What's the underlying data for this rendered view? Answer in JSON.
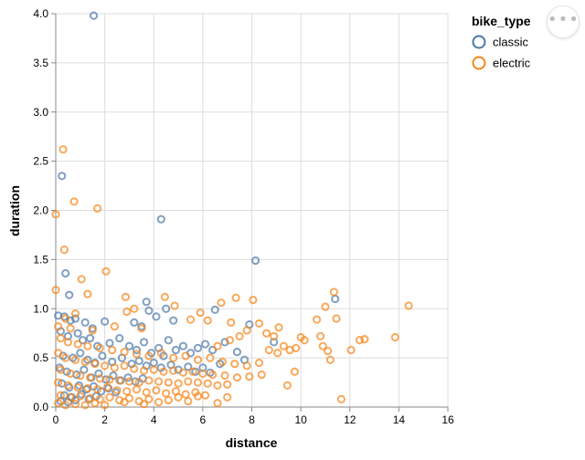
{
  "chart_data": {
    "type": "scatter",
    "title": "",
    "xlabel": "distance",
    "ylabel": "duration",
    "xlim": [
      0,
      16
    ],
    "ylim": [
      0,
      4
    ],
    "x_ticks": [
      "0",
      "2",
      "4",
      "6",
      "8",
      "10",
      "12",
      "14",
      "16"
    ],
    "y_ticks": [
      "0.0",
      "0.5",
      "1.0",
      "1.5",
      "2.0",
      "2.5",
      "3.0",
      "3.5",
      "4.0"
    ],
    "grid": true,
    "legend": {
      "title": "bike_type",
      "placement": "top-right",
      "entries": [
        "classic",
        "electric"
      ]
    },
    "series": [
      {
        "name": "classic",
        "color": "#4c78a8",
        "points": [
          [
            1.55,
            3.98
          ],
          [
            0.25,
            2.35
          ],
          [
            4.3,
            1.91
          ],
          [
            8.15,
            1.49
          ],
          [
            0.4,
            1.36
          ],
          [
            0.55,
            1.14
          ],
          [
            11.4,
            1.1
          ],
          [
            3.7,
            1.07
          ],
          [
            0.1,
            0.93
          ],
          [
            0.35,
            0.92
          ],
          [
            0.6,
            0.88
          ],
          [
            0.8,
            0.9
          ],
          [
            1.2,
            0.86
          ],
          [
            1.5,
            0.8
          ],
          [
            2.0,
            0.87
          ],
          [
            3.2,
            0.86
          ],
          [
            3.5,
            0.82
          ],
          [
            3.8,
            0.98
          ],
          [
            4.1,
            0.92
          ],
          [
            4.5,
            1.0
          ],
          [
            4.8,
            0.88
          ],
          [
            6.5,
            0.99
          ],
          [
            7.9,
            0.84
          ],
          [
            8.9,
            0.66
          ],
          [
            0.2,
            0.77
          ],
          [
            0.5,
            0.72
          ],
          [
            0.9,
            0.75
          ],
          [
            1.1,
            0.68
          ],
          [
            1.4,
            0.7
          ],
          [
            1.7,
            0.62
          ],
          [
            2.2,
            0.65
          ],
          [
            2.6,
            0.7
          ],
          [
            3.0,
            0.62
          ],
          [
            3.3,
            0.58
          ],
          [
            3.6,
            0.66
          ],
          [
            3.9,
            0.55
          ],
          [
            4.2,
            0.6
          ],
          [
            4.4,
            0.52
          ],
          [
            4.6,
            0.68
          ],
          [
            4.9,
            0.58
          ],
          [
            5.2,
            0.62
          ],
          [
            5.5,
            0.55
          ],
          [
            5.8,
            0.6
          ],
          [
            6.1,
            0.64
          ],
          [
            6.4,
            0.58
          ],
          [
            6.9,
            0.66
          ],
          [
            7.4,
            0.56
          ],
          [
            7.7,
            0.48
          ],
          [
            0.3,
            0.52
          ],
          [
            0.7,
            0.5
          ],
          [
            1.0,
            0.55
          ],
          [
            1.3,
            0.48
          ],
          [
            1.6,
            0.45
          ],
          [
            1.9,
            0.52
          ],
          [
            2.3,
            0.46
          ],
          [
            2.7,
            0.5
          ],
          [
            3.1,
            0.44
          ],
          [
            3.4,
            0.47
          ],
          [
            3.7,
            0.42
          ],
          [
            4.0,
            0.45
          ],
          [
            4.3,
            0.4
          ],
          [
            4.7,
            0.43
          ],
          [
            5.0,
            0.38
          ],
          [
            5.4,
            0.41
          ],
          [
            5.7,
            0.36
          ],
          [
            6.0,
            0.4
          ],
          [
            6.3,
            0.35
          ],
          [
            6.7,
            0.44
          ],
          [
            0.15,
            0.4
          ],
          [
            0.45,
            0.36
          ],
          [
            0.85,
            0.33
          ],
          [
            1.15,
            0.38
          ],
          [
            1.45,
            0.3
          ],
          [
            1.75,
            0.34
          ],
          [
            2.05,
            0.28
          ],
          [
            2.35,
            0.32
          ],
          [
            2.65,
            0.27
          ],
          [
            2.95,
            0.3
          ],
          [
            3.25,
            0.26
          ],
          [
            3.55,
            0.29
          ],
          [
            0.25,
            0.24
          ],
          [
            0.55,
            0.2
          ],
          [
            0.95,
            0.22
          ],
          [
            1.25,
            0.18
          ],
          [
            1.55,
            0.21
          ],
          [
            1.85,
            0.16
          ],
          [
            2.15,
            0.19
          ],
          [
            2.45,
            0.15
          ],
          [
            0.35,
            0.12
          ],
          [
            0.65,
            0.1
          ],
          [
            1.05,
            0.13
          ],
          [
            1.35,
            0.08
          ],
          [
            0.2,
            0.06
          ],
          [
            0.5,
            0.05
          ],
          [
            0.8,
            0.07
          ],
          [
            1.65,
            0.11
          ]
        ]
      },
      {
        "name": "electric",
        "color": "#f58518",
        "points": [
          [
            0.3,
            2.62
          ],
          [
            0.0,
            1.96
          ],
          [
            0.75,
            2.09
          ],
          [
            1.7,
            2.02
          ],
          [
            0.35,
            1.6
          ],
          [
            2.05,
            1.38
          ],
          [
            1.05,
            1.3
          ],
          [
            0.0,
            1.19
          ],
          [
            1.3,
            1.15
          ],
          [
            14.4,
            1.03
          ],
          [
            11.35,
            1.17
          ],
          [
            11.0,
            1.02
          ],
          [
            10.65,
            0.89
          ],
          [
            11.45,
            0.9
          ],
          [
            7.35,
            1.11
          ],
          [
            8.05,
            1.09
          ],
          [
            6.75,
            1.06
          ],
          [
            4.45,
            1.12
          ],
          [
            4.85,
            1.03
          ],
          [
            2.85,
            1.12
          ],
          [
            3.2,
            1.0
          ],
          [
            2.9,
            0.97
          ],
          [
            0.8,
            0.95
          ],
          [
            0.4,
            0.9
          ],
          [
            9.1,
            0.81
          ],
          [
            9.8,
            0.6
          ],
          [
            10.0,
            0.71
          ],
          [
            10.15,
            0.68
          ],
          [
            10.8,
            0.72
          ],
          [
            10.9,
            0.62
          ],
          [
            11.1,
            0.57
          ],
          [
            11.2,
            0.48
          ],
          [
            12.05,
            0.58
          ],
          [
            12.4,
            0.68
          ],
          [
            12.6,
            0.69
          ],
          [
            13.85,
            0.71
          ],
          [
            11.65,
            0.08
          ],
          [
            9.75,
            0.36
          ],
          [
            9.45,
            0.22
          ],
          [
            8.3,
            0.85
          ],
          [
            8.6,
            0.75
          ],
          [
            8.9,
            0.72
          ],
          [
            8.7,
            0.58
          ],
          [
            9.05,
            0.55
          ],
          [
            9.3,
            0.62
          ],
          [
            9.55,
            0.58
          ],
          [
            7.15,
            0.86
          ],
          [
            6.2,
            0.88
          ],
          [
            5.9,
            0.96
          ],
          [
            5.5,
            0.89
          ],
          [
            7.8,
            0.78
          ],
          [
            7.5,
            0.72
          ],
          [
            7.1,
            0.68
          ],
          [
            6.6,
            0.62
          ],
          [
            0.1,
            0.82
          ],
          [
            0.6,
            0.8
          ],
          [
            1.5,
            0.78
          ],
          [
            2.4,
            0.82
          ],
          [
            3.5,
            0.8
          ],
          [
            0.2,
            0.7
          ],
          [
            0.5,
            0.66
          ],
          [
            0.9,
            0.64
          ],
          [
            1.3,
            0.62
          ],
          [
            1.8,
            0.6
          ],
          [
            2.3,
            0.58
          ],
          [
            2.8,
            0.56
          ],
          [
            3.3,
            0.54
          ],
          [
            3.8,
            0.52
          ],
          [
            4.3,
            0.55
          ],
          [
            4.8,
            0.5
          ],
          [
            5.3,
            0.52
          ],
          [
            5.8,
            0.48
          ],
          [
            6.3,
            0.5
          ],
          [
            6.8,
            0.46
          ],
          [
            7.3,
            0.44
          ],
          [
            7.8,
            0.42
          ],
          [
            8.3,
            0.45
          ],
          [
            0.1,
            0.55
          ],
          [
            0.4,
            0.5
          ],
          [
            0.8,
            0.48
          ],
          [
            1.2,
            0.46
          ],
          [
            1.6,
            0.44
          ],
          [
            2.0,
            0.42
          ],
          [
            2.4,
            0.4
          ],
          [
            2.8,
            0.42
          ],
          [
            3.2,
            0.39
          ],
          [
            3.6,
            0.37
          ],
          [
            4.0,
            0.38
          ],
          [
            4.4,
            0.36
          ],
          [
            4.8,
            0.37
          ],
          [
            5.2,
            0.35
          ],
          [
            5.6,
            0.36
          ],
          [
            6.0,
            0.34
          ],
          [
            6.4,
            0.33
          ],
          [
            6.9,
            0.32
          ],
          [
            7.4,
            0.3
          ],
          [
            7.9,
            0.31
          ],
          [
            8.4,
            0.33
          ],
          [
            0.2,
            0.38
          ],
          [
            0.6,
            0.34
          ],
          [
            1.0,
            0.32
          ],
          [
            1.4,
            0.3
          ],
          [
            1.8,
            0.29
          ],
          [
            2.2,
            0.28
          ],
          [
            2.6,
            0.27
          ],
          [
            3.0,
            0.26
          ],
          [
            3.4,
            0.25
          ],
          [
            3.8,
            0.27
          ],
          [
            4.2,
            0.26
          ],
          [
            4.6,
            0.25
          ],
          [
            5.0,
            0.24
          ],
          [
            5.4,
            0.26
          ],
          [
            5.8,
            0.25
          ],
          [
            6.2,
            0.24
          ],
          [
            6.6,
            0.22
          ],
          [
            7.0,
            0.23
          ],
          [
            0.1,
            0.25
          ],
          [
            0.5,
            0.22
          ],
          [
            0.9,
            0.2
          ],
          [
            1.3,
            0.19
          ],
          [
            1.7,
            0.18
          ],
          [
            2.1,
            0.2
          ],
          [
            2.5,
            0.17
          ],
          [
            2.9,
            0.16
          ],
          [
            3.3,
            0.18
          ],
          [
            3.7,
            0.15
          ],
          [
            4.1,
            0.17
          ],
          [
            4.5,
            0.14
          ],
          [
            4.9,
            0.16
          ],
          [
            5.3,
            0.13
          ],
          [
            5.7,
            0.15
          ],
          [
            6.1,
            0.12
          ],
          [
            0.2,
            0.12
          ],
          [
            0.6,
            0.1
          ],
          [
            1.0,
            0.11
          ],
          [
            1.4,
            0.09
          ],
          [
            1.8,
            0.08
          ],
          [
            2.2,
            0.1
          ],
          [
            2.6,
            0.07
          ],
          [
            3.0,
            0.09
          ],
          [
            3.4,
            0.06
          ],
          [
            3.8,
            0.08
          ],
          [
            4.2,
            0.05
          ],
          [
            4.6,
            0.07
          ],
          [
            5.0,
            0.1
          ],
          [
            5.4,
            0.06
          ],
          [
            5.8,
            0.11
          ],
          [
            6.6,
            0.04
          ],
          [
            7.0,
            0.1
          ],
          [
            0.1,
            0.04
          ],
          [
            0.4,
            0.02
          ],
          [
            0.8,
            0.03
          ],
          [
            1.2,
            0.02
          ],
          [
            1.6,
            0.04
          ],
          [
            2.0,
            0.02
          ],
          [
            2.8,
            0.05
          ],
          [
            3.6,
            0.03
          ]
        ]
      }
    ]
  }
}
